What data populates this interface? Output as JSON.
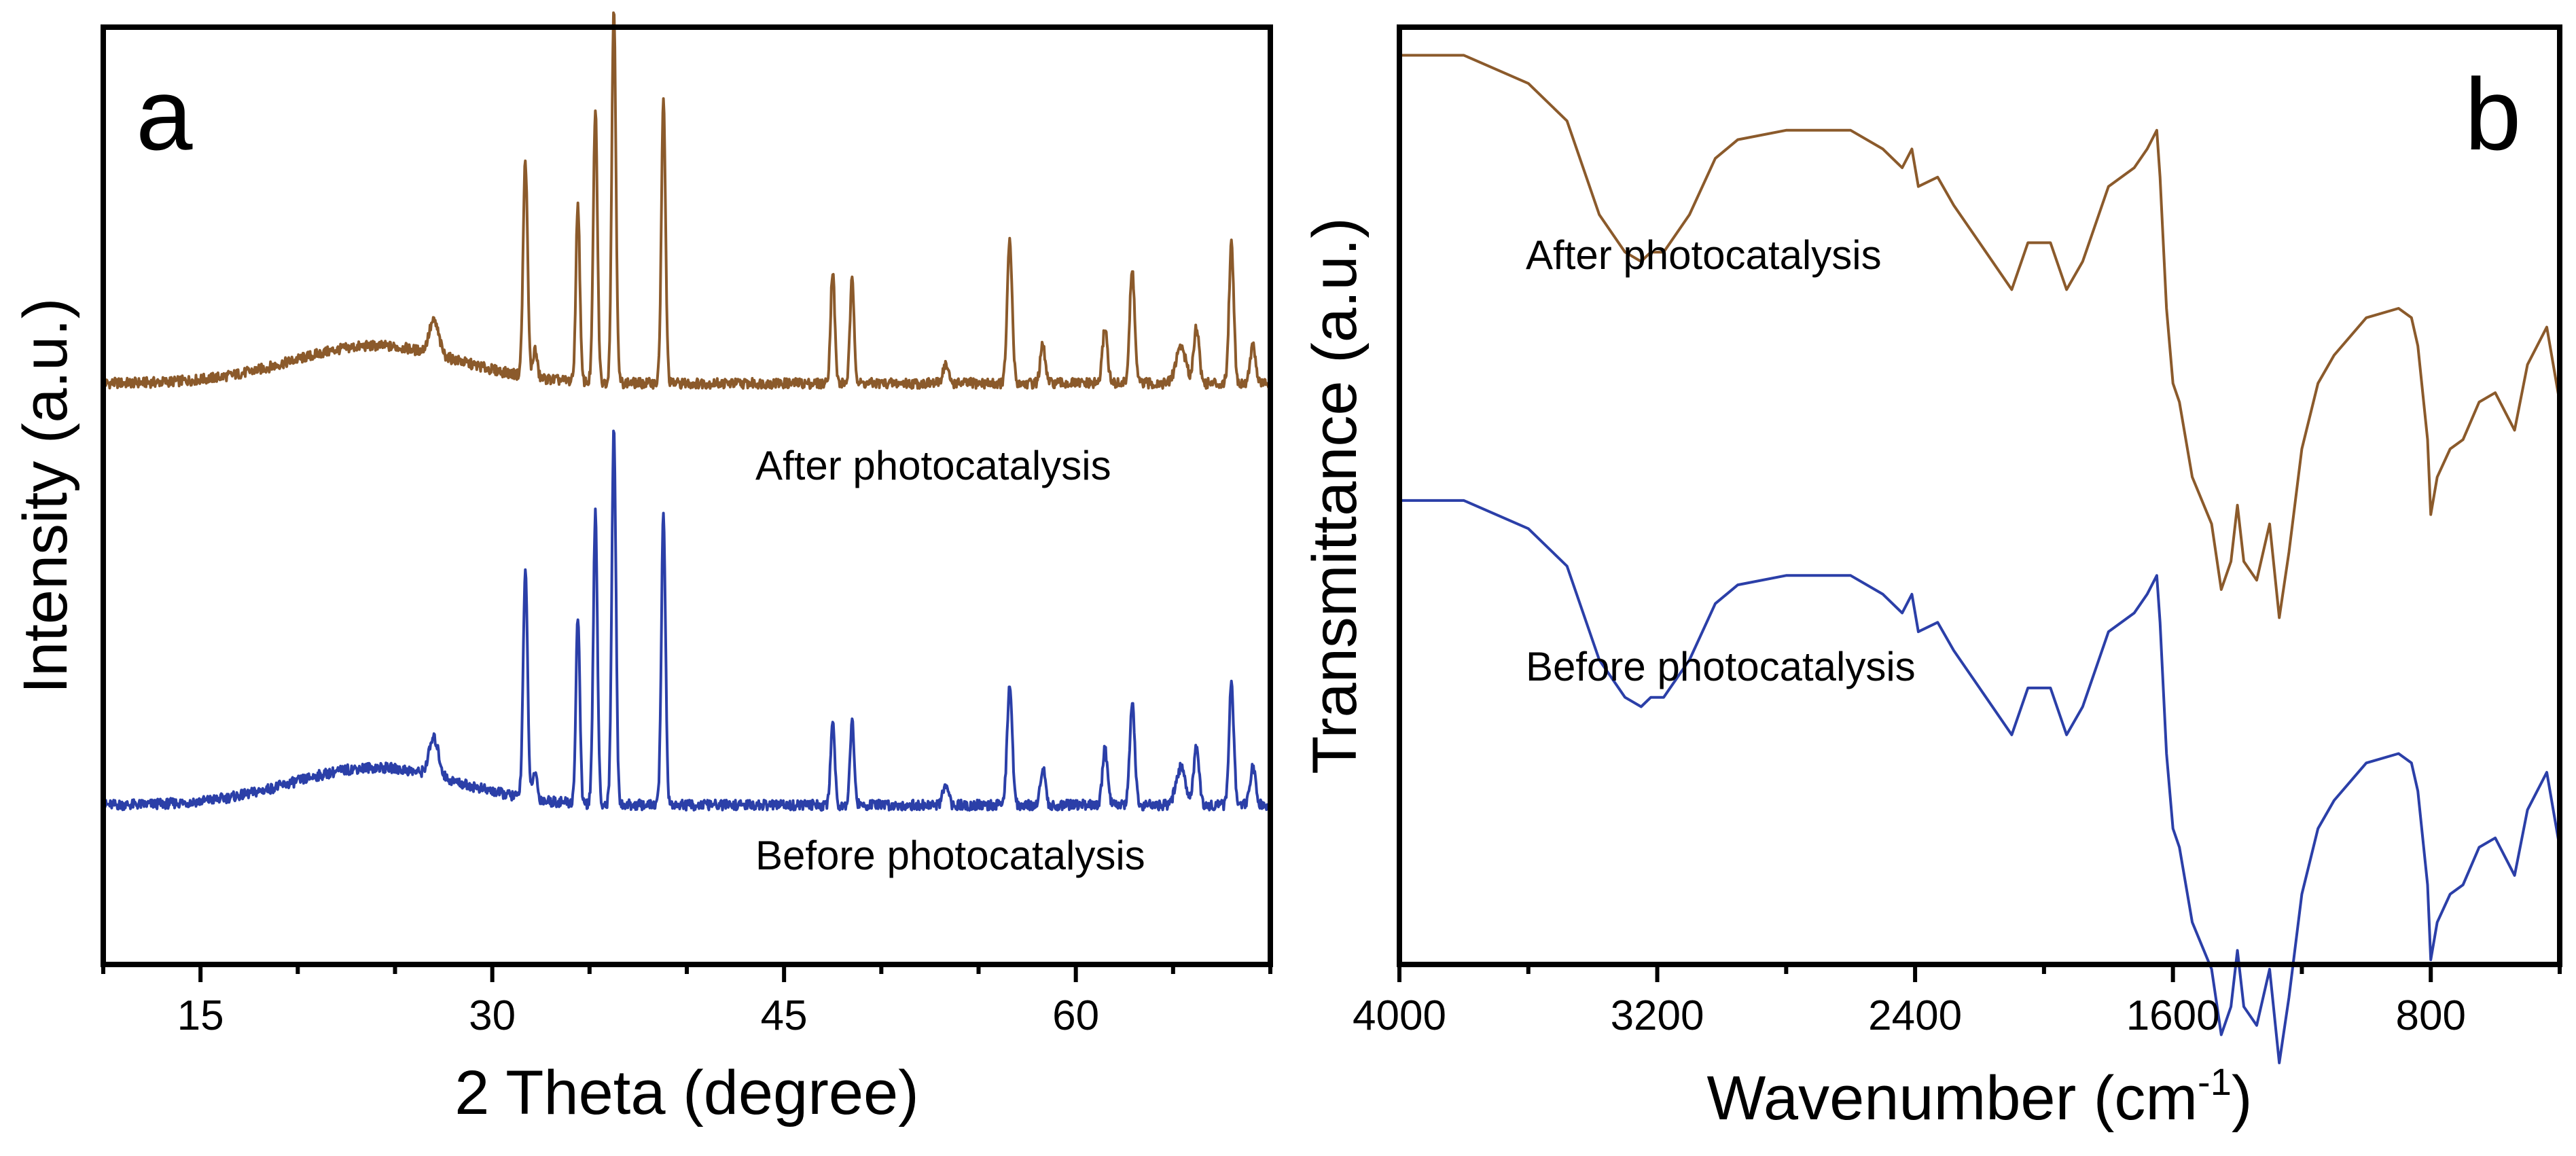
{
  "colors": {
    "after": "#8b5a2b",
    "before": "#2b3fa8"
  },
  "chart_data": [
    {
      "type": "line",
      "panel": "a",
      "title": "",
      "xlabel": "2 Theta (degree)",
      "ylabel": "Intensity (a.u.)",
      "xlim": [
        10,
        70
      ],
      "xticks": [
        15,
        30,
        45,
        60
      ],
      "x_tick_labels": [
        "15",
        "30",
        "45",
        "60"
      ],
      "ylim": [
        0,
        100
      ],
      "legend_labels": [
        "After photocatalysis",
        "Before photocatalysis"
      ],
      "series": [
        {
          "name": "After photocatalysis",
          "color_key": "after",
          "baseline": 62,
          "hump": {
            "center": 24,
            "width": 6,
            "height": 4
          },
          "peaks": [
            {
              "x": 27.0,
              "h": 3.5,
              "w": 0.35
            },
            {
              "x": 31.7,
              "h": 23,
              "w": 0.16
            },
            {
              "x": 32.2,
              "h": 3,
              "w": 0.15
            },
            {
              "x": 34.4,
              "h": 19,
              "w": 0.14
            },
            {
              "x": 35.3,
              "h": 29,
              "w": 0.15
            },
            {
              "x": 36.25,
              "h": 40,
              "w": 0.15
            },
            {
              "x": 38.8,
              "h": 30,
              "w": 0.15
            },
            {
              "x": 47.5,
              "h": 12,
              "w": 0.15
            },
            {
              "x": 48.5,
              "h": 11,
              "w": 0.15
            },
            {
              "x": 53.3,
              "h": 2,
              "w": 0.2
            },
            {
              "x": 56.6,
              "h": 15,
              "w": 0.18
            },
            {
              "x": 58.3,
              "h": 4,
              "w": 0.18
            },
            {
              "x": 61.5,
              "h": 6,
              "w": 0.18
            },
            {
              "x": 62.9,
              "h": 12,
              "w": 0.18
            },
            {
              "x": 65.4,
              "h": 4,
              "w": 0.35
            },
            {
              "x": 66.2,
              "h": 6,
              "w": 0.2
            },
            {
              "x": 68.0,
              "h": 15,
              "w": 0.17
            },
            {
              "x": 69.1,
              "h": 4,
              "w": 0.2
            }
          ]
        },
        {
          "name": "Before photocatalysis",
          "color_key": "before",
          "baseline": 17,
          "hump": {
            "center": 24,
            "width": 6,
            "height": 4
          },
          "peaks": [
            {
              "x": 27.0,
              "h": 4,
              "w": 0.35
            },
            {
              "x": 31.7,
              "h": 24,
              "w": 0.16
            },
            {
              "x": 32.2,
              "h": 3,
              "w": 0.15
            },
            {
              "x": 34.4,
              "h": 20,
              "w": 0.14
            },
            {
              "x": 35.3,
              "h": 31,
              "w": 0.15
            },
            {
              "x": 36.25,
              "h": 40,
              "w": 0.15
            },
            {
              "x": 38.8,
              "h": 31,
              "w": 0.15
            },
            {
              "x": 47.5,
              "h": 9,
              "w": 0.15
            },
            {
              "x": 48.5,
              "h": 9,
              "w": 0.15
            },
            {
              "x": 53.3,
              "h": 2,
              "w": 0.2
            },
            {
              "x": 56.6,
              "h": 13,
              "w": 0.18
            },
            {
              "x": 58.3,
              "h": 4,
              "w": 0.18
            },
            {
              "x": 61.5,
              "h": 6,
              "w": 0.18
            },
            {
              "x": 62.9,
              "h": 11,
              "w": 0.18
            },
            {
              "x": 65.4,
              "h": 4,
              "w": 0.35
            },
            {
              "x": 66.2,
              "h": 6,
              "w": 0.2
            },
            {
              "x": 68.0,
              "h": 13,
              "w": 0.17
            },
            {
              "x": 69.1,
              "h": 4,
              "w": 0.2
            }
          ]
        }
      ]
    },
    {
      "type": "line",
      "panel": "b",
      "title": "",
      "xlabel": "Wavenumber (cm",
      "xlabel_sup": "-1",
      "xlabel_end": ")",
      "ylabel": "Transmittance (a.u.)",
      "xlim": [
        4000,
        400
      ],
      "xticks": [
        4000,
        3200,
        2400,
        1600,
        800
      ],
      "x_tick_labels": [
        "4000",
        "3200",
        "2400",
        "1600",
        "800"
      ],
      "ylim": [
        0,
        100
      ],
      "legend_labels": [
        "After photocatalysis",
        "Before photocatalysis"
      ],
      "series": [
        {
          "name": "After photocatalysis",
          "color_key": "after",
          "x": [
            4000,
            3800,
            3600,
            3480,
            3380,
            3300,
            3250,
            3220,
            3180,
            3100,
            3020,
            2950,
            2800,
            2600,
            2500,
            2440,
            2410,
            2390,
            2330,
            2280,
            2200,
            2100,
            2050,
            1980,
            1930,
            1880,
            1800,
            1720,
            1680,
            1650,
            1640,
            1620,
            1600,
            1580,
            1540,
            1480,
            1450,
            1420,
            1400,
            1380,
            1340,
            1300,
            1270,
            1240,
            1200,
            1150,
            1100,
            1000,
            900,
            860,
            840,
            810,
            800,
            780,
            740,
            700,
            650,
            600,
            540,
            500,
            440,
            400
          ],
          "y": [
            97,
            97,
            94,
            90,
            80,
            76,
            75,
            76,
            76,
            80,
            86,
            88,
            89,
            89,
            87,
            85,
            87,
            83,
            84,
            81,
            77,
            72,
            77,
            77,
            72,
            75,
            83,
            85,
            87,
            89,
            84,
            70,
            62,
            60,
            52,
            47,
            40,
            43,
            49,
            43,
            41,
            47,
            37,
            44,
            55,
            62,
            65,
            69,
            70,
            69,
            66,
            56,
            48,
            52,
            55,
            56,
            60,
            61,
            57,
            64,
            68,
            60
          ]
        },
        {
          "name": "Before photocatalysis",
          "color_key": "before",
          "x": [
            4000,
            3800,
            3600,
            3480,
            3380,
            3300,
            3250,
            3220,
            3180,
            3100,
            3020,
            2950,
            2800,
            2600,
            2500,
            2440,
            2410,
            2390,
            2330,
            2280,
            2200,
            2100,
            2050,
            1980,
            1930,
            1880,
            1800,
            1720,
            1680,
            1650,
            1640,
            1620,
            1600,
            1580,
            1540,
            1480,
            1450,
            1420,
            1400,
            1380,
            1340,
            1300,
            1270,
            1240,
            1200,
            1150,
            1100,
            1000,
            900,
            860,
            840,
            810,
            800,
            780,
            740,
            700,
            650,
            600,
            540,
            500,
            440,
            400
          ],
          "y": [
            97,
            97,
            94,
            90,
            80,
            76,
            75,
            76,
            76,
            80,
            86,
            88,
            89,
            89,
            87,
            85,
            87,
            83,
            84,
            81,
            77,
            72,
            77,
            77,
            72,
            75,
            83,
            85,
            87,
            89,
            84,
            70,
            62,
            60,
            52,
            47,
            40,
            43,
            49,
            43,
            41,
            47,
            37,
            44,
            55,
            62,
            65,
            69,
            70,
            69,
            66,
            56,
            48,
            52,
            55,
            56,
            60,
            61,
            57,
            64,
            68,
            60
          ],
          "offset": -47.5
        }
      ]
    }
  ]
}
